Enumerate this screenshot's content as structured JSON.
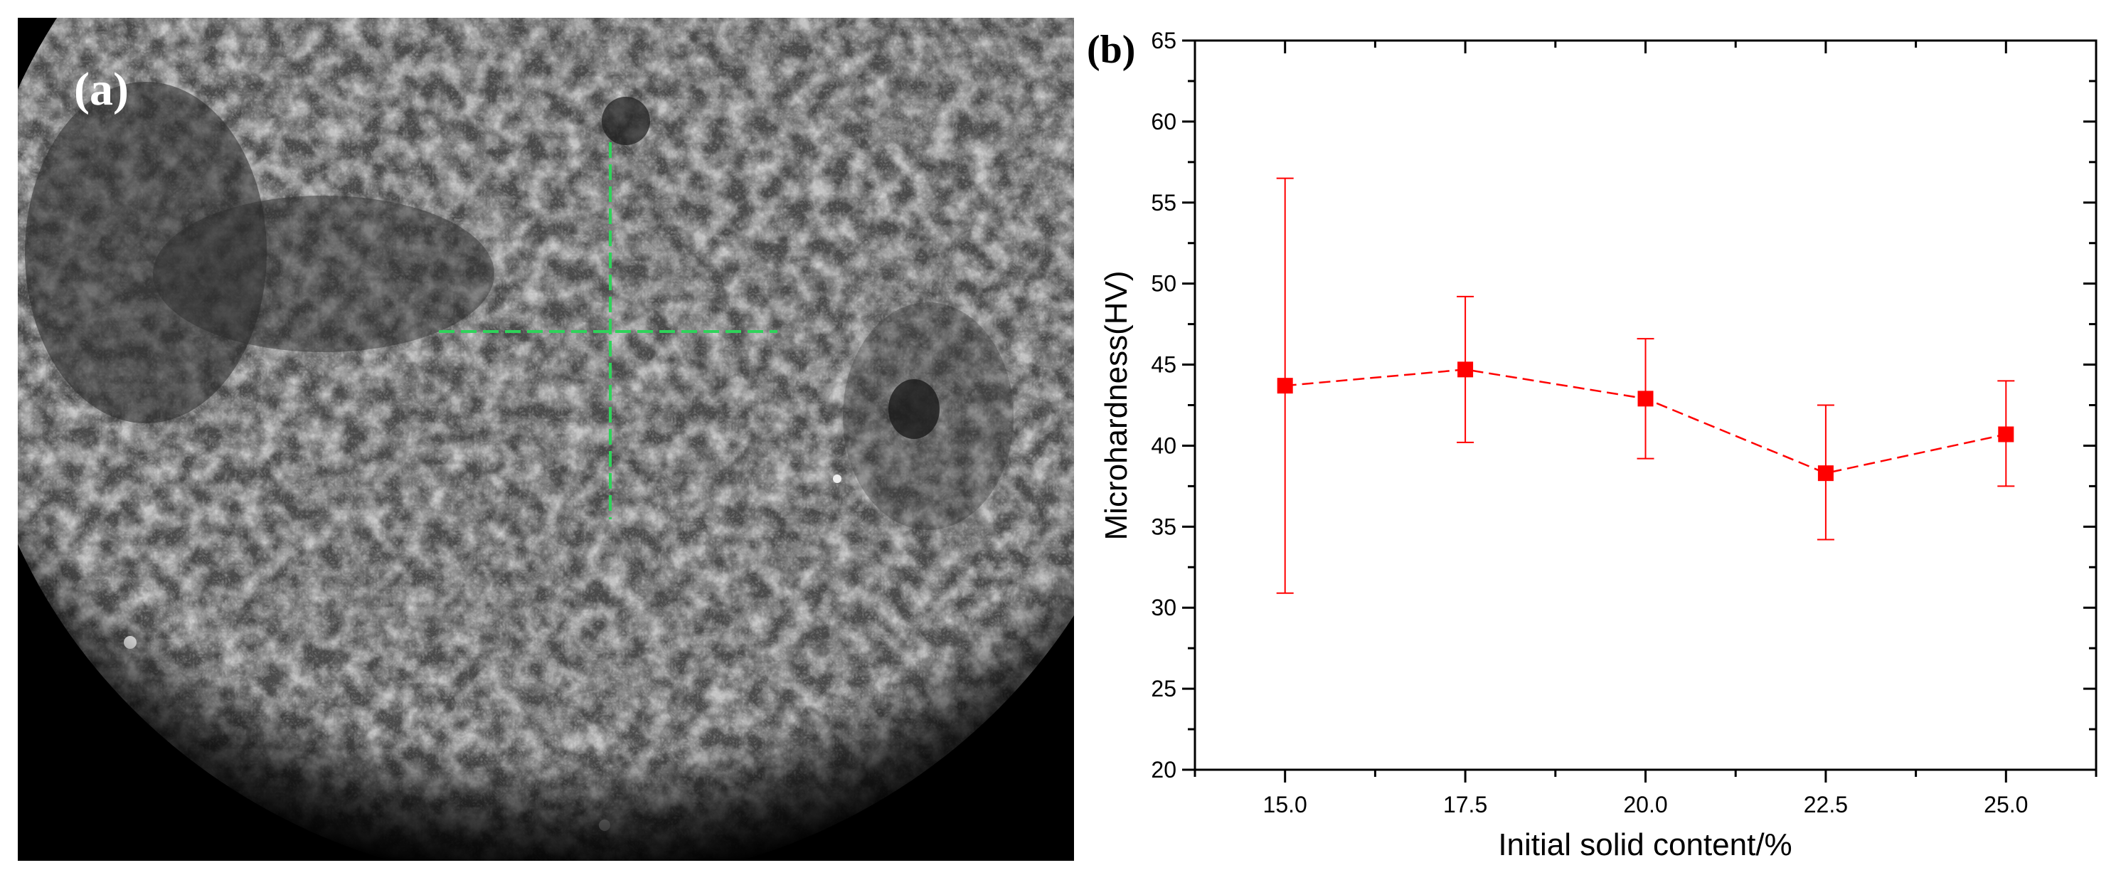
{
  "panel_a": {
    "label": "(a)"
  },
  "panel_b": {
    "label": "(b)"
  },
  "chart_data": {
    "type": "line",
    "xlabel": "Initial solid content/%",
    "ylabel": "Microhardness(HV)",
    "x": [
      15.0,
      17.5,
      20.0,
      22.5,
      25.0
    ],
    "x_tick_labels": [
      "15.0",
      "17.5",
      "20.0",
      "22.5",
      "25.0"
    ],
    "xlim": [
      13.75,
      26.25
    ],
    "ylim": [
      20,
      65
    ],
    "y_ticks": [
      20,
      25,
      30,
      35,
      40,
      45,
      50,
      55,
      60,
      65
    ],
    "grid": false,
    "series": [
      {
        "values": [
          43.7,
          44.7,
          42.9,
          38.3,
          40.7
        ],
        "error_low": [
          30.9,
          40.2,
          39.2,
          34.2,
          37.5
        ],
        "error_high": [
          56.5,
          49.2,
          46.6,
          42.5,
          44.0
        ],
        "color": "#ff0000",
        "marker": "square",
        "line_style": "dashed"
      }
    ]
  }
}
